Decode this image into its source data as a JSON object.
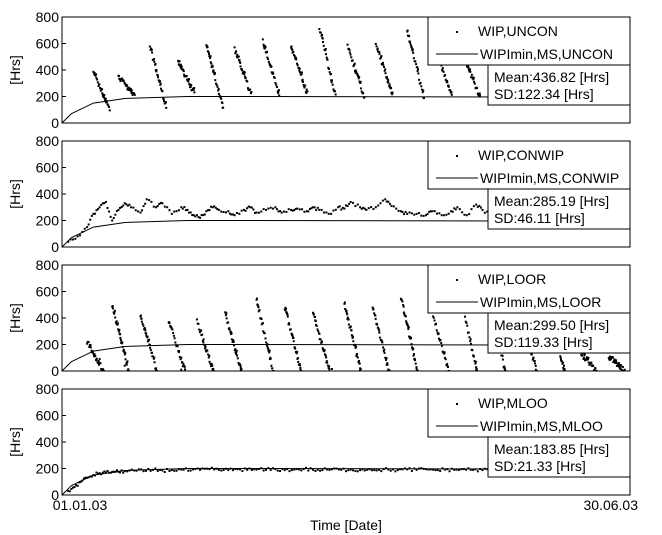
{
  "chart_data": [
    {
      "type": "scatter",
      "ylabel": "[Hrs]",
      "ylim": [
        0,
        800
      ],
      "yticks": [
        "0",
        "200",
        "400",
        "600",
        "800"
      ],
      "series": [
        {
          "name": "WIP,UNCON",
          "marker": "dot",
          "pattern": "sawtooth",
          "cycles": [
            [
              10,
              100,
              380
            ],
            [
              18,
              200,
              360
            ],
            [
              28,
              120,
              580
            ],
            [
              37,
              220,
              470
            ],
            [
              46,
              130,
              580
            ],
            [
              55,
              220,
              560
            ],
            [
              64,
              220,
              620
            ],
            [
              73,
              220,
              580
            ],
            [
              82,
              200,
              720
            ],
            [
              91,
              200,
              580
            ],
            [
              100,
              210,
              600
            ],
            [
              110,
              200,
              700
            ],
            [
              119,
              210,
              560
            ],
            [
              128,
              200,
              500
            ],
            [
              138,
              200,
              460
            ],
            [
              146,
              200,
              640
            ],
            [
              156,
              210,
              560
            ],
            [
              165,
              260,
              380
            ],
            [
              174,
              200,
              400
            ]
          ],
          "points": []
        },
        {
          "name": "WIPImin,MS,UNCON",
          "style": "line",
          "x": [
            0,
            3,
            10,
            20,
            40,
            60,
            181
          ],
          "y": [
            0,
            70,
            150,
            185,
            200,
            200,
            195
          ]
        }
      ],
      "stats": {
        "mean": "Mean:436.82 [Hrs]",
        "sd": "SD:122.34 [Hrs]"
      }
    },
    {
      "type": "scatter",
      "ylabel": "[Hrs]",
      "ylim": [
        0,
        800
      ],
      "yticks": [
        "0",
        "200",
        "400",
        "600",
        "800"
      ],
      "series": [
        {
          "name": "WIP,CONWIP",
          "marker": "dot",
          "pattern": "wavy",
          "points": [
            [
              2,
              40
            ],
            [
              5,
              80
            ],
            [
              8,
              150
            ],
            [
              10,
              250
            ],
            [
              12,
              300
            ],
            [
              14,
              340
            ],
            [
              16,
              200
            ],
            [
              18,
              280
            ],
            [
              20,
              330
            ],
            [
              22,
              300
            ],
            [
              25,
              260
            ],
            [
              27,
              360
            ],
            [
              30,
              300
            ],
            [
              32,
              330
            ],
            [
              35,
              250
            ],
            [
              38,
              300
            ],
            [
              40,
              280
            ],
            [
              42,
              240
            ],
            [
              44,
              220
            ],
            [
              46,
              270
            ],
            [
              48,
              300
            ],
            [
              50,
              280
            ],
            [
              53,
              270
            ],
            [
              55,
              240
            ],
            [
              58,
              280
            ],
            [
              60,
              300
            ],
            [
              62,
              260
            ],
            [
              65,
              280
            ],
            [
              68,
              300
            ],
            [
              70,
              260
            ],
            [
              73,
              280
            ],
            [
              75,
              290
            ],
            [
              78,
              270
            ],
            [
              80,
              300
            ],
            [
              82,
              280
            ],
            [
              85,
              250
            ],
            [
              88,
              300
            ],
            [
              90,
              290
            ],
            [
              92,
              340
            ],
            [
              95,
              300
            ],
            [
              97,
              280
            ],
            [
              100,
              300
            ],
            [
              103,
              360
            ],
            [
              105,
              310
            ],
            [
              108,
              270
            ],
            [
              110,
              250
            ],
            [
              113,
              250
            ],
            [
              116,
              240
            ],
            [
              118,
              270
            ],
            [
              121,
              240
            ],
            [
              124,
              270
            ],
            [
              126,
              300
            ],
            [
              129,
              240
            ],
            [
              132,
              320
            ],
            [
              134,
              280
            ],
            [
              137,
              240
            ],
            [
              140,
              300
            ],
            [
              142,
              360
            ],
            [
              145,
              310
            ],
            [
              148,
              330
            ],
            [
              150,
              380
            ],
            [
              153,
              360
            ],
            [
              155,
              300
            ],
            [
              158,
              250
            ],
            [
              161,
              340
            ],
            [
              163,
              320
            ],
            [
              166,
              240
            ],
            [
              169,
              300
            ],
            [
              171,
              280
            ],
            [
              174,
              260
            ],
            [
              177,
              290
            ],
            [
              180,
              310
            ]
          ]
        },
        {
          "name": "WIPImin,MS,CONWIP",
          "style": "line",
          "x": [
            0,
            3,
            10,
            20,
            40,
            60,
            181
          ],
          "y": [
            0,
            70,
            150,
            185,
            200,
            200,
            195
          ]
        }
      ],
      "stats": {
        "mean": "Mean:285.19 [Hrs]",
        "sd": "SD:46.11 [Hrs]"
      }
    },
    {
      "type": "scatter",
      "ylabel": "[Hrs]",
      "ylim": [
        0,
        800
      ],
      "yticks": [
        "0",
        "200",
        "400",
        "600",
        "800"
      ],
      "series": [
        {
          "name": "WIP,LOOR",
          "marker": "dot",
          "pattern": "sawtooth",
          "cycles": [
            [
              8,
              0,
              220
            ],
            [
              16,
              0,
              500
            ],
            [
              25,
              0,
              420
            ],
            [
              34,
              0,
              380
            ],
            [
              43,
              0,
              380
            ],
            [
              52,
              0,
              430
            ],
            [
              62,
              0,
              540
            ],
            [
              71,
              0,
              480
            ],
            [
              80,
              0,
              440
            ],
            [
              90,
              0,
              500
            ],
            [
              99,
              0,
              480
            ],
            [
              108,
              0,
              560
            ],
            [
              118,
              0,
              440
            ],
            [
              127,
              0,
              560
            ],
            [
              136,
              0,
              540
            ],
            [
              146,
              0,
              460
            ],
            [
              155,
              0,
              460
            ],
            [
              165,
              0,
              140
            ],
            [
              174,
              0,
              120
            ]
          ],
          "points": [
            [
              12,
              90
            ],
            [
              20,
              40
            ],
            [
              30,
              20
            ],
            [
              38,
              10
            ],
            [
              48,
              15
            ],
            [
              57,
              10
            ],
            [
              67,
              20
            ],
            [
              76,
              10
            ],
            [
              86,
              15
            ],
            [
              95,
              20
            ],
            [
              104,
              10
            ],
            [
              113,
              15
            ],
            [
              123,
              30
            ],
            [
              132,
              10
            ],
            [
              141,
              20
            ],
            [
              151,
              10
            ],
            [
              160,
              10
            ],
            [
              170,
              20
            ],
            [
              178,
              15
            ]
          ]
        },
        {
          "name": "WIPImin,MS,LOOR",
          "style": "line",
          "x": [
            0,
            3,
            10,
            20,
            40,
            60,
            181
          ],
          "y": [
            0,
            70,
            150,
            185,
            200,
            200,
            195
          ]
        }
      ],
      "stats": {
        "mean": "Mean:299.50 [Hrs]",
        "sd": "SD:119.33 [Hrs]"
      }
    },
    {
      "type": "scatter",
      "ylabel": "[Hrs]",
      "ylim": [
        0,
        800
      ],
      "yticks": [
        "0",
        "200",
        "400",
        "600",
        "800"
      ],
      "xlabel": "Time [Date]",
      "xticks": [
        "01.01.03",
        "30.06.03"
      ],
      "series": [
        {
          "name": "WIP,MLOO",
          "marker": "dot",
          "pattern": "flat",
          "points": [
            [
              2,
              30
            ],
            [
              4,
              60
            ],
            [
              6,
              100
            ],
            [
              8,
              130
            ],
            [
              10,
              150
            ],
            [
              12,
              165
            ],
            [
              14,
              170
            ],
            [
              16,
              175
            ],
            [
              18,
              175
            ],
            [
              20,
              180
            ],
            [
              23,
              185
            ],
            [
              26,
              180
            ],
            [
              29,
              190
            ],
            [
              32,
              185
            ],
            [
              35,
              188
            ],
            [
              38,
              192
            ],
            [
              41,
              185
            ],
            [
              44,
              190
            ],
            [
              47,
              195
            ],
            [
              50,
              190
            ],
            [
              53,
              188
            ],
            [
              56,
              195
            ],
            [
              59,
              190
            ],
            [
              62,
              192
            ],
            [
              65,
              190
            ],
            [
              68,
              195
            ],
            [
              71,
              188
            ],
            [
              74,
              192
            ],
            [
              77,
              196
            ],
            [
              80,
              190
            ],
            [
              83,
              188
            ],
            [
              86,
              194
            ],
            [
              89,
              190
            ],
            [
              92,
              192
            ],
            [
              95,
              188
            ],
            [
              98,
              195
            ],
            [
              101,
              190
            ],
            [
              104,
              192
            ],
            [
              107,
              188
            ],
            [
              110,
              193
            ],
            [
              113,
              190
            ],
            [
              116,
              195
            ],
            [
              119,
              188
            ],
            [
              122,
              192
            ],
            [
              125,
              190
            ],
            [
              128,
              196
            ],
            [
              131,
              190
            ],
            [
              134,
              188
            ],
            [
              137,
              194
            ],
            [
              140,
              190
            ],
            [
              143,
              192
            ],
            [
              146,
              188
            ],
            [
              149,
              195
            ],
            [
              152,
              190
            ],
            [
              155,
              192
            ],
            [
              158,
              188
            ],
            [
              161,
              193
            ],
            [
              164,
              190
            ],
            [
              167,
              195
            ],
            [
              170,
              188
            ],
            [
              173,
              192
            ],
            [
              176,
              190
            ],
            [
              179,
              194
            ]
          ]
        },
        {
          "name": "WIPImin,MS,MLOO",
          "style": "line",
          "x": [
            0,
            3,
            10,
            20,
            40,
            60,
            181
          ],
          "y": [
            0,
            70,
            150,
            185,
            200,
            200,
            195
          ]
        }
      ],
      "stats": {
        "mean": "Mean:183.85 [Hrs]",
        "sd": "SD:21.33 [Hrs]"
      }
    }
  ]
}
